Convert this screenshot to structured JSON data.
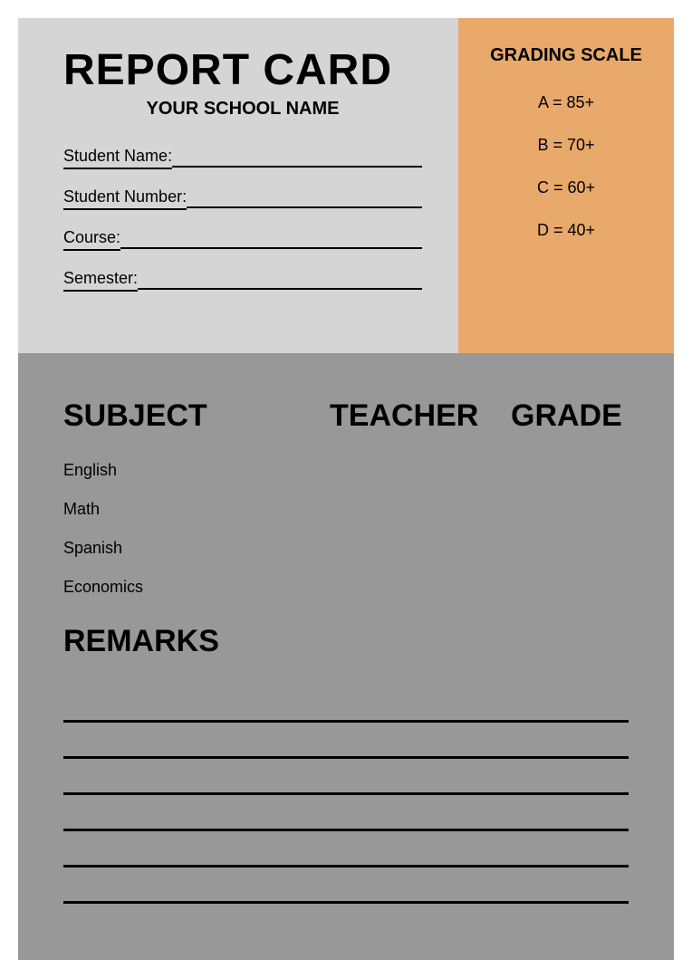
{
  "colors": {
    "top_left_bg": "#d5d5d5",
    "top_right_bg": "#e8a96b",
    "bottom_bg": "#989898",
    "text": "#000000"
  },
  "header": {
    "title": "REPORT CARD",
    "subtitle": "YOUR SCHOOL NAME"
  },
  "fields": [
    {
      "label": "Student Name:"
    },
    {
      "label": "Student Number:"
    },
    {
      "label": "Course:"
    },
    {
      "label": "Semester:"
    }
  ],
  "grading": {
    "title": "GRADING SCALE",
    "items": [
      "A = 85+",
      "B = 70+",
      "C = 60+",
      "D = 40+"
    ]
  },
  "table": {
    "columns": [
      "SUBJECT",
      "TEACHER",
      "GRADE"
    ],
    "subjects": [
      "English",
      "Math",
      "Spanish",
      "Economics"
    ]
  },
  "remarks": {
    "title": "REMARKS",
    "line_count": 6
  }
}
